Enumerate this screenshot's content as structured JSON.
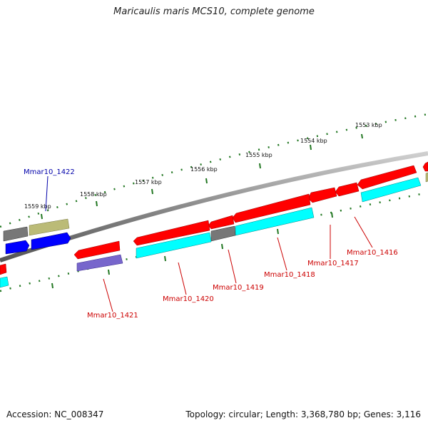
{
  "title": "Maricaulis maris MCS10, complete genome",
  "footer": {
    "accession": "Accession: NC_008347",
    "topology": "Topology: circular; Length: 3,368,780 bp; Genes: 3,116"
  },
  "ticks": {
    "t1553": "1553 kbp",
    "t1554": "1554 kbp",
    "t1555": "1555 kbp",
    "t1556": "1556 kbp",
    "t1557": "1557 kbp",
    "t1558": "1558 kbp",
    "t1559": "1559 kbp"
  },
  "genes": {
    "g1416": "Mmar10_1416",
    "g1417": "Mmar10_1417",
    "g1418": "Mmar10_1418",
    "g1419": "Mmar10_1419",
    "g1420": "Mmar10_1420",
    "g1421": "Mmar10_1421",
    "g1422": "Mmar10_1422"
  },
  "colors": {
    "forward_cds": "#ff0000",
    "reverse_cds": "#00ffff",
    "other_forward": "#0000ff",
    "other_reverse": "#7766cc",
    "pseudo": "#bbbb77",
    "hypothetical": "#777777",
    "label_red": "#cc0000",
    "label_blue": "#0000aa",
    "tick": "#227722",
    "backbone": "#8a8a8a"
  }
}
